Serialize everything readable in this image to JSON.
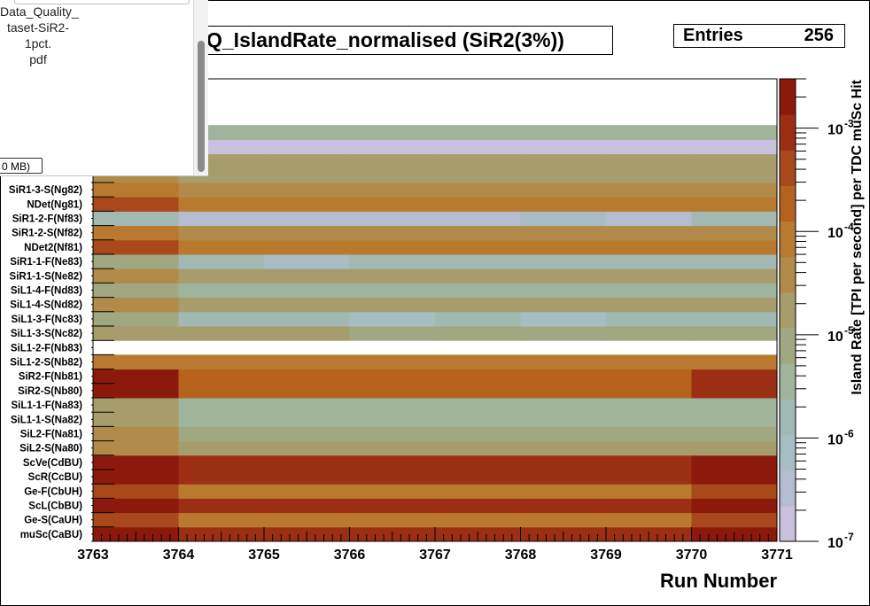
{
  "viewer": {
    "file_name": "Data_Quality_\ntaset-SiR2-1pct.\npdf",
    "file_size": "0 MB)"
  },
  "plot": {
    "title": "Q_IslandRate_normalised (SiR2(3%))",
    "stats_label": "Entries",
    "stats_value": "256"
  },
  "chart_data": {
    "type": "heatmap",
    "title": "Q_IslandRate_normalised (SiR2(3%))",
    "xlabel": "Run Number",
    "zlabel": "Island Rate [TPI per second] per TDC muSc Hit",
    "x_ticks": [
      "3763",
      "3764",
      "3765",
      "3766",
      "3767",
      "3768",
      "3769",
      "3770",
      "3771"
    ],
    "xlim": [
      3763,
      3771
    ],
    "z_scale": "log",
    "z_ticks": [
      {
        "value": 1e-07,
        "label": "10^-7"
      },
      {
        "value": 1e-06,
        "label": "10^-6"
      },
      {
        "value": 1e-05,
        "label": "10^-5"
      },
      {
        "value": 0.0001,
        "label": "10^-4"
      },
      {
        "value": 0.001,
        "label": "10^-3"
      }
    ],
    "zlim": [
      1e-07,
      0.003
    ],
    "y_categories": [
      "muSc(CaBU)",
      "Ge-S(CaUH)",
      "ScL(CbBU)",
      "Ge-F(CbUH)",
      "ScR(CcBU)",
      "ScVe(CdBU)",
      "SiL2-S(Na80)",
      "SiL2-F(Na81)",
      "SiL1-1-S(Na82)",
      "SiL1-1-F(Na83)",
      "SiR2-S(Nb80)",
      "SiR2-F(Nb81)",
      "SiL1-2-S(Nb82)",
      "SiL1-2-F(Nb83)",
      "SiL1-3-S(Nc82)",
      "SiL1-3-F(Nc83)",
      "SiL1-4-S(Nd82)",
      "SiL1-4-F(Nd83)",
      "SiR1-1-S(Ne82)",
      "SiR1-1-F(Ne83)",
      "NDet2(Nf81)",
      "SiR1-2-S(Nf82)",
      "SiR1-2-F(Nf83)",
      "NDet(Ng81)",
      "SiR1-3-S(Ng82)"
    ],
    "hidden_rows": [
      [
        5e-05,
        2e-05,
        2e-05,
        2e-05,
        2e-05,
        2e-05,
        2e-05,
        2e-05
      ],
      [
        2e-05,
        2e-05,
        2e-05,
        2e-05,
        2e-05,
        2e-05,
        2e-05,
        2e-05
      ],
      [
        2e-07,
        2e-07,
        2e-07,
        2e-07,
        2e-07,
        2e-07,
        2e-07,
        2e-07
      ],
      [
        2.5e-06,
        2.5e-06,
        2.5e-06,
        2.5e-06,
        2.5e-06,
        2.5e-06,
        2.5e-06,
        2.5e-06
      ]
    ],
    "values": [
      [
        0.0028,
        0.0009,
        0.0009,
        0.0009,
        0.0009,
        0.0009,
        0.0009,
        0.0025
      ],
      [
        0.0003,
        0.0001,
        0.0001,
        0.0001,
        0.0001,
        0.0001,
        0.0001,
        0.0003
      ],
      [
        0.0028,
        0.0009,
        0.0009,
        0.0009,
        0.0009,
        0.0009,
        0.0009,
        0.0025
      ],
      [
        0.0003,
        0.0001,
        0.0001,
        0.0001,
        0.0001,
        0.0001,
        0.0001,
        0.0003
      ],
      [
        0.0028,
        0.0009,
        0.0009,
        0.0009,
        0.0009,
        0.0009,
        0.0009,
        0.0025
      ],
      [
        0.0028,
        0.0009,
        0.0009,
        0.0009,
        0.0009,
        0.0009,
        0.0009,
        0.0025
      ],
      [
        5e-05,
        2e-05,
        2e-05,
        2e-05,
        2e-05,
        2e-05,
        2e-05,
        2e-05
      ],
      [
        3e-05,
        1e-05,
        1e-05,
        1e-05,
        1e-05,
        1e-05,
        1e-05,
        1e-05
      ],
      [
        1.5e-05,
        4e-06,
        4e-06,
        4e-06,
        4e-06,
        4e-06,
        4e-06,
        4e-06
      ],
      [
        1.5e-05,
        2.5e-06,
        2.5e-06,
        2.5e-06,
        2.5e-06,
        2.5e-06,
        2.5e-06,
        2.5e-06
      ],
      [
        0.0018,
        0.00025,
        0.00025,
        0.00025,
        0.00025,
        0.00025,
        0.00025,
        0.0008
      ],
      [
        0.0015,
        0.0002,
        0.0002,
        0.0002,
        0.0002,
        0.0002,
        0.0002,
        0.0007
      ],
      [
        0.00012,
        6e-05,
        6e-05,
        6e-05,
        6e-05,
        6e-05,
        6e-05,
        6e-05
      ],
      [
        null,
        null,
        null,
        null,
        null,
        null,
        null,
        null
      ],
      [
        2e-05,
        2e-05,
        2e-05,
        1e-05,
        1e-05,
        1e-05,
        1e-05,
        1e-05
      ],
      [
        1e-05,
        1.5e-06,
        1.5e-06,
        1e-06,
        1.5e-06,
        1e-06,
        1.5e-06,
        1.5e-06
      ],
      [
        4e-05,
        2e-05,
        2e-05,
        2e-05,
        2e-05,
        2e-05,
        2e-05,
        2e-05
      ],
      [
        1e-05,
        2.5e-06,
        2.5e-06,
        2.5e-06,
        2.5e-06,
        2.5e-06,
        2.5e-06,
        2.5e-06
      ],
      [
        3e-05,
        1.5e-05,
        1.5e-05,
        1.5e-05,
        1.5e-05,
        1.5e-05,
        1.5e-05,
        1.5e-05
      ],
      [
        1e-05,
        2e-06,
        1e-06,
        2e-06,
        2e-06,
        2e-06,
        2e-06,
        2e-06
      ],
      [
        0.00035,
        0.0001,
        0.0001,
        0.0001,
        0.0001,
        0.0001,
        0.0001,
        0.0001
      ],
      [
        0.00012,
        4e-05,
        4e-05,
        4e-05,
        4e-05,
        4e-05,
        4e-05,
        4e-05
      ],
      [
        2e-06,
        4e-07,
        4e-07,
        4e-07,
        4e-07,
        5e-07,
        4e-07,
        2e-06
      ],
      [
        0.0003,
        0.0001,
        0.0001,
        0.0001,
        0.0001,
        0.0001,
        0.0001,
        0.0001
      ],
      [
        0.00012,
        3e-05,
        3e-05,
        3e-05,
        3e-05,
        3e-05,
        3e-05,
        3e-05
      ]
    ],
    "palette": [
      "#c8c0dc",
      "#b4bcd0",
      "#a7bcc3",
      "#a2b8b2",
      "#9fb49b",
      "#a0a882",
      "#a79d6c",
      "#b28b4a",
      "#b97a2f",
      "#b5621e",
      "#a9481a",
      "#9c2e14",
      "#8c1a0c"
    ],
    "grid": false
  }
}
